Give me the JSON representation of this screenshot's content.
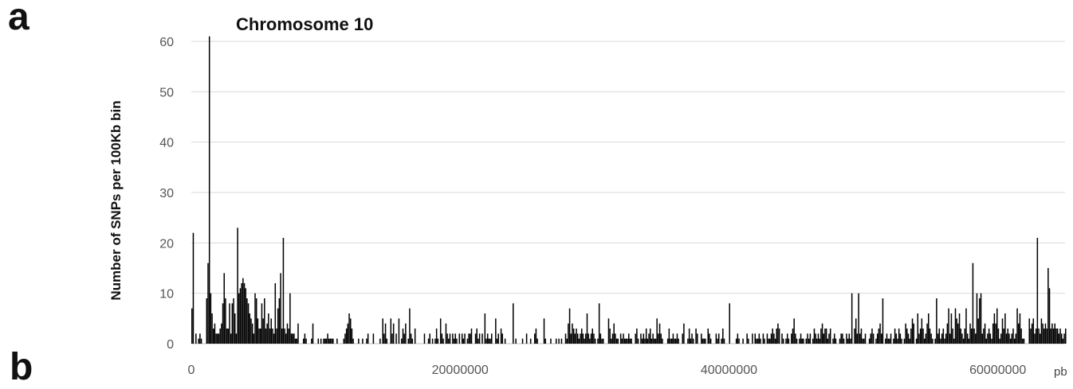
{
  "panels": {
    "a": "a",
    "b": "b"
  },
  "chart_data": {
    "type": "bar",
    "title": "Chromosome 10",
    "xlabel": "",
    "x_unit": "pb",
    "ylabel": "Number of SNPs per 100Kb bin",
    "xlim": [
      0,
      65000000
    ],
    "ylim": [
      0,
      60
    ],
    "x_ticks": [
      {
        "value": 0,
        "label": "0"
      },
      {
        "value": 20000000,
        "label": "20000000"
      },
      {
        "value": 40000000,
        "label": "40000000"
      },
      {
        "value": 60000000,
        "label": "60000000"
      }
    ],
    "y_ticks": [
      0,
      10,
      20,
      30,
      40,
      50,
      60
    ],
    "grid": "horizontal",
    "bin_size": 100000,
    "bar_color": "#000000",
    "grid_color": "#d9d9d9",
    "bins_start": 0,
    "values": [
      7,
      22,
      0,
      2,
      0,
      1,
      2,
      1,
      0,
      0,
      0,
      9,
      16,
      61,
      10,
      6,
      3,
      4,
      2,
      2,
      2,
      3,
      4,
      8,
      14,
      9,
      3,
      3,
      8,
      2,
      8,
      9,
      6,
      2,
      23,
      10,
      11,
      12,
      13,
      12,
      11,
      9,
      8,
      6,
      5,
      4,
      2,
      10,
      9,
      5,
      3,
      3,
      8,
      5,
      9,
      3,
      4,
      6,
      3,
      5,
      3,
      2,
      12,
      3,
      7,
      9,
      14,
      3,
      21,
      3,
      2,
      4,
      3,
      10,
      2,
      2,
      2,
      1,
      1,
      4,
      0,
      0,
      0,
      1,
      2,
      1,
      0,
      0,
      0,
      1,
      4,
      0,
      0,
      0,
      1,
      0,
      1,
      0,
      1,
      1,
      1,
      2,
      1,
      1,
      1,
      1,
      0,
      0,
      1,
      0,
      0,
      0,
      0,
      1,
      2,
      3,
      4,
      6,
      5,
      3,
      1,
      0,
      0,
      0,
      1,
      0,
      0,
      1,
      0,
      0,
      1,
      2,
      0,
      0,
      0,
      2,
      0,
      0,
      0,
      0,
      1,
      0,
      5,
      2,
      4,
      1,
      0,
      0,
      5,
      2,
      4,
      0,
      2,
      0,
      5,
      0,
      1,
      3,
      2,
      4,
      0,
      1,
      7,
      2,
      1,
      0,
      3,
      0,
      0,
      0,
      0,
      0,
      0,
      2,
      0,
      0,
      1,
      2,
      0,
      1,
      0,
      1,
      3,
      1,
      0,
      5,
      2,
      1,
      0,
      4,
      2,
      1,
      2,
      0,
      2,
      1,
      2,
      1,
      0,
      2,
      0,
      2,
      1,
      2,
      0,
      1,
      2,
      2,
      3,
      0,
      0,
      2,
      3,
      1,
      2,
      0,
      2,
      0,
      6,
      1,
      2,
      1,
      1,
      2,
      0,
      0,
      5,
      1,
      2,
      0,
      3,
      2,
      0,
      1,
      0,
      0,
      0,
      0,
      0,
      8,
      0,
      1,
      0,
      0,
      0,
      0,
      1,
      0,
      0,
      2,
      0,
      0,
      1,
      0,
      0,
      2,
      3,
      1,
      0,
      0,
      0,
      0,
      5,
      1,
      0,
      0,
      0,
      1,
      0,
      0,
      0,
      1,
      0,
      1,
      0,
      1,
      0,
      0,
      2,
      1,
      4,
      7,
      2,
      4,
      3,
      2,
      3,
      2,
      1,
      2,
      3,
      2,
      1,
      2,
      6,
      2,
      1,
      2,
      3,
      2,
      1,
      0,
      1,
      8,
      2,
      1,
      1,
      0,
      0,
      0,
      5,
      3,
      1,
      2,
      4,
      2,
      1,
      1,
      0,
      2,
      1,
      2,
      1,
      1,
      1,
      2,
      1,
      1,
      0,
      0,
      2,
      3,
      1,
      0,
      2,
      1,
      2,
      1,
      3,
      1,
      2,
      3,
      1,
      2,
      1,
      1,
      5,
      2,
      4,
      2,
      1,
      0,
      0,
      0,
      1,
      3,
      1,
      1,
      2,
      1,
      1,
      2,
      1,
      0,
      0,
      2,
      4,
      0,
      0,
      1,
      3,
      1,
      2,
      1,
      0,
      3,
      2,
      0,
      0,
      2,
      1,
      1,
      1,
      0,
      3,
      2,
      1,
      0,
      0,
      0,
      2,
      1,
      2,
      0,
      1,
      3,
      1,
      0,
      0,
      0,
      8,
      0,
      0,
      0,
      0,
      1,
      2,
      1,
      0,
      0,
      1,
      0,
      0,
      2,
      1,
      0,
      0,
      2,
      0,
      2,
      1,
      1,
      2,
      1,
      0,
      2,
      1,
      0,
      2,
      1,
      1,
      2,
      3,
      2,
      1,
      3,
      4,
      3,
      0,
      2,
      1,
      0,
      1,
      2,
      1,
      0,
      2,
      3,
      5,
      2,
      1,
      0,
      1,
      2,
      1,
      1,
      0,
      1,
      2,
      1,
      2,
      0,
      1,
      3,
      2,
      1,
      2,
      1,
      3,
      4,
      2,
      3,
      3,
      1,
      2,
      3,
      0,
      1,
      2,
      1,
      0,
      0,
      1,
      2,
      2,
      1,
      0,
      2,
      1,
      2,
      1,
      10,
      0,
      3,
      5,
      2,
      10,
      2,
      3,
      1,
      1,
      2,
      0,
      0,
      1,
      2,
      3,
      2,
      0,
      1,
      2,
      3,
      4,
      2,
      9,
      0,
      1,
      2,
      1,
      1,
      2,
      0,
      1,
      3,
      2,
      1,
      3,
      2,
      1,
      0,
      1,
      4,
      3,
      2,
      1,
      3,
      5,
      4,
      0,
      1,
      6,
      2,
      3,
      5,
      3,
      1,
      2,
      4,
      6,
      3,
      2,
      1,
      0,
      1,
      9,
      2,
      3,
      1,
      2,
      3,
      1,
      2,
      4,
      7,
      2,
      6,
      3,
      1,
      7,
      5,
      4,
      6,
      3,
      2,
      1,
      3,
      7,
      2,
      1,
      4,
      3,
      16,
      3,
      2,
      10,
      5,
      9,
      10,
      2,
      3,
      4,
      1,
      2,
      3,
      2,
      1,
      4,
      6,
      4,
      7,
      3,
      1,
      2,
      5,
      3,
      6,
      2,
      3,
      2,
      1,
      2,
      3,
      1,
      2,
      7,
      4,
      6,
      3,
      1,
      1,
      0,
      0,
      0,
      5,
      3,
      4,
      5,
      2,
      3,
      21,
      3,
      2,
      5,
      4,
      3,
      4,
      3,
      15,
      11,
      3,
      4,
      3,
      4,
      3,
      3,
      2,
      3,
      2,
      1,
      2,
      3,
      9,
      2,
      4,
      3,
      2,
      3,
      5,
      3,
      2,
      1,
      3,
      4,
      2,
      7,
      2,
      3,
      4,
      2,
      3,
      2,
      1,
      5,
      9,
      3,
      4,
      2,
      3,
      5,
      2,
      3,
      5,
      3,
      2,
      3,
      6,
      5,
      4,
      7,
      3,
      1,
      2,
      3,
      2,
      3,
      4,
      2,
      5,
      3,
      11,
      4,
      9,
      2,
      1,
      3,
      5,
      7,
      6,
      7,
      7,
      7,
      5,
      3,
      2,
      4,
      5,
      3,
      2,
      1,
      1
    ]
  }
}
